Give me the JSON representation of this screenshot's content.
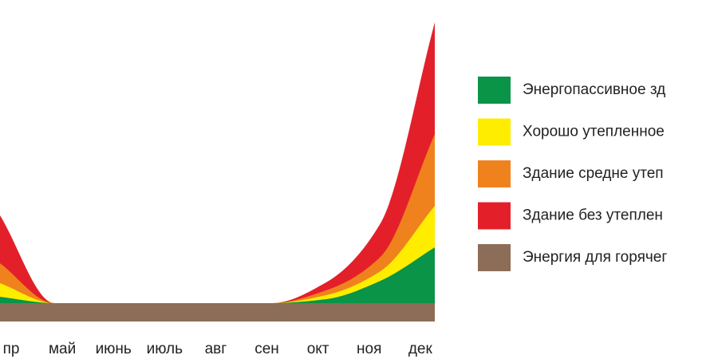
{
  "chart_data": {
    "type": "stacked-area",
    "categories": [
      "пр",
      "май",
      "июнь",
      "июль",
      "авг",
      "сен",
      "окт",
      "ноя",
      "дек"
    ],
    "series": [
      {
        "name": "Энергия для горячег",
        "color": "#8c6d57",
        "values": [
          23,
          23,
          23,
          23,
          23,
          23,
          23,
          23,
          23
        ]
      },
      {
        "name": "Энергопассивное зд",
        "color": "#0a9447",
        "values": [
          8,
          0,
          0,
          0,
          0,
          0,
          5,
          28,
          70
        ]
      },
      {
        "name": "Хорошо утепленное",
        "color": "#ffed00",
        "values": [
          17,
          0,
          0,
          0,
          0,
          0,
          5,
          12,
          52
        ]
      },
      {
        "name": "Здание средне утеп",
        "color": "#f0821e",
        "values": [
          25,
          0,
          0,
          0,
          0,
          0,
          6,
          18,
          90
        ]
      },
      {
        "name": "Здание без утеплен",
        "color": "#e3202a",
        "values": [
          60,
          0,
          0,
          0,
          0,
          0,
          10,
          42,
          140
        ]
      }
    ]
  }
}
